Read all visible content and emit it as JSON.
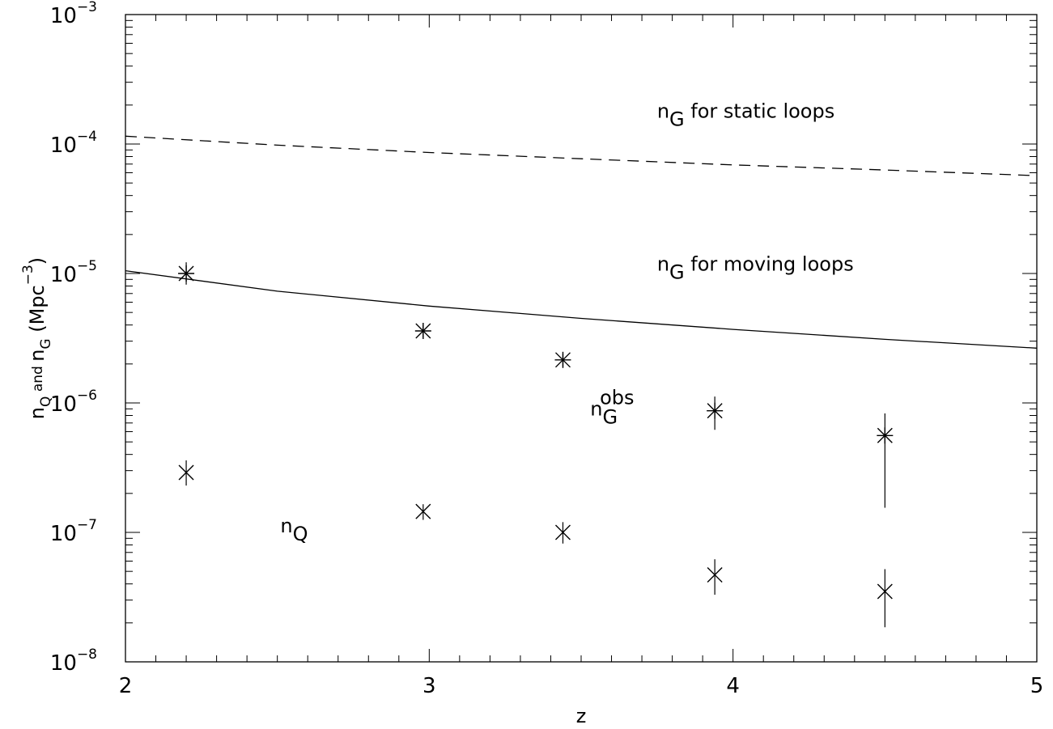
{
  "chart_data": {
    "type": "scatter",
    "xlabel": "z",
    "ylabel": {
      "n1": "n",
      "s1": "Q",
      "mid": " and ",
      "n2": "n",
      "s2": "G",
      "unit": " (Mpc",
      "exp": "−3",
      "close": ")"
    },
    "xlim": [
      2,
      5
    ],
    "ylim": [
      1e-08,
      0.001
    ],
    "yscale": "log",
    "grid": false,
    "x_ticks": [
      {
        "value": 2,
        "label": "2"
      },
      {
        "value": 3,
        "label": "3"
      },
      {
        "value": 4,
        "label": "4"
      },
      {
        "value": 5,
        "label": "5"
      }
    ],
    "y_ticks": [
      {
        "value": 1e-08,
        "base": "10",
        "exp": "−8"
      },
      {
        "value": 1e-07,
        "base": "10",
        "exp": "−7"
      },
      {
        "value": 1e-06,
        "base": "10",
        "exp": "−6"
      },
      {
        "value": 1e-05,
        "base": "10",
        "exp": "−5"
      },
      {
        "value": 0.0001,
        "base": "10",
        "exp": "−4"
      },
      {
        "value": 0.001,
        "base": "10",
        "exp": "−3"
      }
    ],
    "lines": [
      {
        "style": "dashed",
        "x": [
          2,
          2.5,
          3,
          3.5,
          4,
          4.5,
          5
        ],
        "y": [
          0.000115,
          9.8e-05,
          8.6e-05,
          7.7e-05,
          6.9e-05,
          6.3e-05,
          5.7e-05
        ]
      },
      {
        "style": "solid",
        "x": [
          2,
          2.5,
          3,
          3.5,
          4,
          4.5,
          5
        ],
        "y": [
          1.05e-05,
          7.3e-06,
          5.6e-06,
          4.5e-06,
          3.7e-06,
          3.1e-06,
          2.65e-06
        ]
      }
    ],
    "points": [
      {
        "marker": "asterisk",
        "x": [
          2.2,
          2.98,
          3.44,
          3.94,
          4.5
        ],
        "y": [
          1e-05,
          3.6e-06,
          2.15e-06,
          8.7e-07,
          5.6e-07
        ],
        "y_low": [
          8.2e-06,
          3.2e-06,
          1.9e-06,
          6.2e-07,
          1.55e-07
        ],
        "y_high": [
          1.22e-05,
          4e-06,
          2.4e-06,
          1.12e-06,
          8.3e-07
        ]
      },
      {
        "marker": "x",
        "x": [
          2.2,
          2.98,
          3.44,
          3.94,
          4.5
        ],
        "y": [
          2.9e-07,
          1.45e-07,
          1e-07,
          4.7e-08,
          3.5e-08
        ],
        "y_low": [
          2.3e-07,
          1.25e-07,
          8.2e-08,
          3.3e-08,
          1.85e-08
        ],
        "y_high": [
          3.6e-07,
          1.65e-07,
          1.2e-07,
          6.2e-08,
          5.2e-08
        ]
      }
    ],
    "annotations": [
      {
        "id": "static",
        "x": 3.75,
        "y": 0.00016,
        "base": "n",
        "sub": "G",
        "sup": "",
        "rest": " for static loops"
      },
      {
        "id": "moving",
        "x": 3.75,
        "y": 1.05e-05,
        "base": "n",
        "sub": "G",
        "sup": "",
        "rest": " for moving loops"
      },
      {
        "id": "obs",
        "x": 3.53,
        "y": 8e-07,
        "base": "n",
        "sub": "G",
        "sup": "obs",
        "rest": ""
      },
      {
        "id": "nq",
        "x": 2.51,
        "y": 1e-07,
        "base": "n",
        "sub": "Q",
        "sup": "",
        "rest": ""
      }
    ]
  }
}
